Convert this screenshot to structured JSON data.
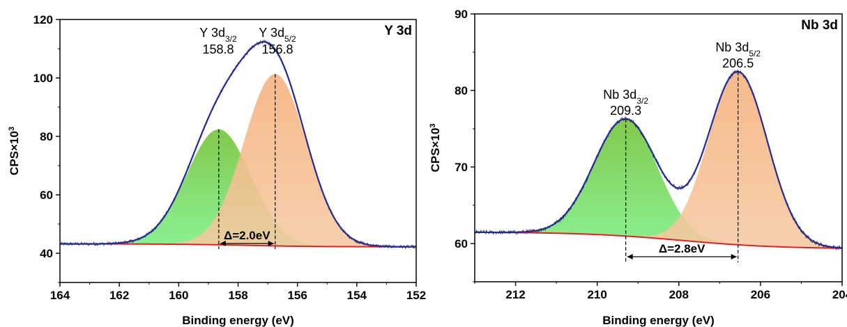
{
  "chart_data": [
    {
      "type": "area",
      "panel_label": "Y 3d",
      "xlabel": "Binding energy (eV)",
      "ylabel": "CPS×10³",
      "xlim": [
        164,
        152
      ],
      "ylim": [
        30,
        120
      ],
      "x_reversed": true,
      "x_ticks": [
        "164",
        "162",
        "160",
        "158",
        "156",
        "154",
        "152"
      ],
      "y_ticks": [
        "40",
        "60",
        "80",
        "100",
        "120"
      ],
      "background": {
        "left_value": 43.2,
        "right_value": 42.2
      },
      "peaks": [
        {
          "name_main": "Y 3d",
          "name_sub": "3/2",
          "position_label": "158.8",
          "center": 158.65,
          "height": 39.5,
          "sigma": 1.08,
          "color": "#7dd87a"
        },
        {
          "name_main": "Y 3d",
          "name_sub": "5/2",
          "position_label": "156.8",
          "center": 156.75,
          "height": 58.8,
          "sigma": 1.05,
          "color": "#f2b88b"
        }
      ],
      "delta_label": "Δ=2.0eV",
      "colors": {
        "envelope": "#1f2b9c",
        "raw": "#333333",
        "baseline": "#e02020",
        "green_light": "#7cf07c",
        "green_dark": "#7ec846"
      }
    },
    {
      "type": "area",
      "panel_label": "Nb 3d",
      "xlabel": "Binding energy (eV)",
      "ylabel": "CPS×10³",
      "xlim": [
        213,
        204
      ],
      "ylim": [
        55,
        90
      ],
      "x_reversed": true,
      "x_ticks": [
        "212",
        "210",
        "208",
        "206",
        "204"
      ],
      "y_ticks": [
        "60",
        "70",
        "80",
        "90"
      ],
      "background": {
        "left_value": 61.5,
        "right_value": 59.3
      },
      "peaks": [
        {
          "name_main": "Nb 3d",
          "name_sub": "3/2",
          "position_label": "209.3",
          "center": 209.3,
          "height": 15.3,
          "sigma": 0.78,
          "color": "#7dd87a"
        },
        {
          "name_main": "Nb 3d",
          "name_sub": "5/2",
          "position_label": "206.5",
          "center": 206.55,
          "height": 22.6,
          "sigma": 0.72,
          "color": "#f2b88b"
        }
      ],
      "delta_label": "Δ=2.8eV",
      "colors": {
        "envelope": "#1f2b9c",
        "raw": "#333333",
        "baseline": "#e02020",
        "green_light": "#7cf07c",
        "green_dark": "#7ec846"
      }
    }
  ]
}
